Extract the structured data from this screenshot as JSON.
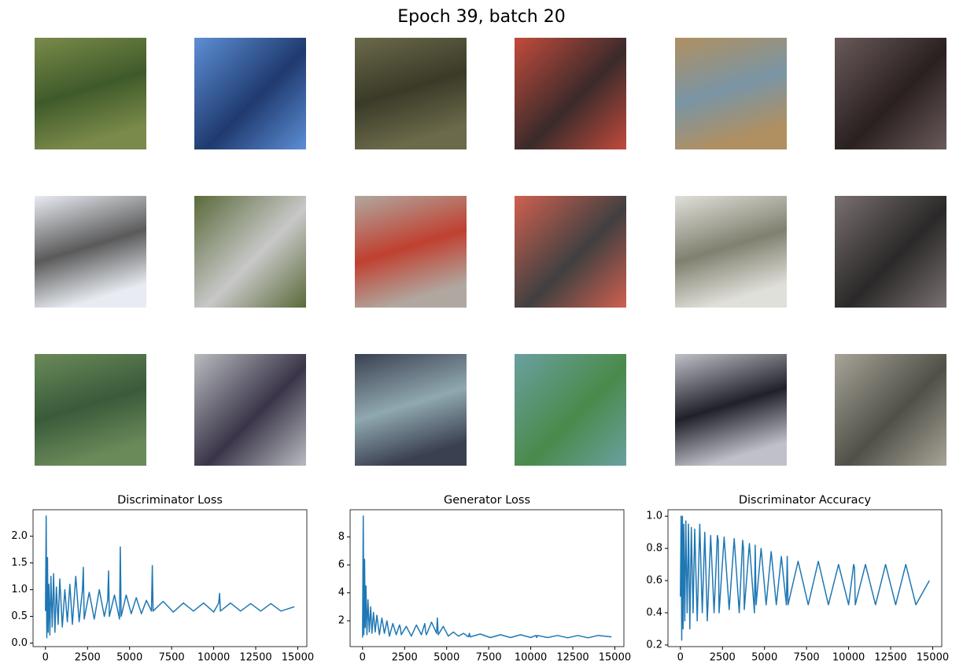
{
  "title": "Epoch 39, batch 20",
  "chart_data": [
    {
      "type": "line",
      "title": "Discriminator Loss",
      "color": "#1f77b4",
      "xlim": [
        -740,
        15540
      ],
      "xticks": [
        0,
        2500,
        5000,
        7500,
        10000,
        12500,
        15000
      ],
      "ylim": [
        -0.066,
        2.496
      ],
      "yticks": [
        {
          "value": 0,
          "label": "0.0"
        },
        0.5,
        {
          "value": 1,
          "label": "1.0"
        },
        1.5,
        {
          "value": 2,
          "label": "2.0"
        }
      ],
      "x": [
        0,
        40,
        80,
        120,
        160,
        200,
        260,
        320,
        400,
        480,
        560,
        650,
        750,
        850,
        1000,
        1150,
        1300,
        1450,
        1600,
        1800,
        2000,
        2200,
        2250,
        2300,
        2600,
        2900,
        3200,
        3500,
        3700,
        3750,
        3800,
        4100,
        4400,
        4450,
        4500,
        4800,
        5100,
        5400,
        5700,
        6000,
        6300,
        6350,
        6400,
        7000,
        7600,
        8200,
        8800,
        9400,
        10000,
        10300,
        10350,
        10400,
        11000,
        11600,
        12200,
        12800,
        13400,
        14000,
        14800
      ],
      "values": [
        0.6,
        2.38,
        0.1,
        1.6,
        0.2,
        1.1,
        0.15,
        1.25,
        0.3,
        1.3,
        0.2,
        1.05,
        0.35,
        1.2,
        0.3,
        1.0,
        0.4,
        1.1,
        0.35,
        1.25,
        0.4,
        1.0,
        1.42,
        0.45,
        0.95,
        0.45,
        1.0,
        0.5,
        0.8,
        1.35,
        0.5,
        0.9,
        0.45,
        1.8,
        0.5,
        0.9,
        0.55,
        0.85,
        0.55,
        0.8,
        0.6,
        1.45,
        0.6,
        0.78,
        0.58,
        0.75,
        0.6,
        0.75,
        0.58,
        0.75,
        0.93,
        0.6,
        0.75,
        0.6,
        0.74,
        0.6,
        0.74,
        0.6,
        0.68
      ]
    },
    {
      "type": "line",
      "title": "Generator Loss",
      "color": "#1f77b4",
      "xlim": [
        -740,
        15540
      ],
      "xticks": [
        0,
        2500,
        5000,
        7500,
        10000,
        12500,
        15000
      ],
      "ylim": [
        0.15,
        9.95
      ],
      "yticks": [
        2,
        4,
        6,
        8
      ],
      "x": [
        0,
        40,
        80,
        120,
        160,
        200,
        260,
        320,
        400,
        480,
        560,
        650,
        750,
        850,
        1000,
        1150,
        1300,
        1450,
        1600,
        1800,
        2000,
        2200,
        2250,
        2300,
        2600,
        2900,
        3200,
        3500,
        3700,
        3750,
        3800,
        4100,
        4400,
        4450,
        4500,
        4800,
        5100,
        5400,
        5700,
        6000,
        6300,
        6350,
        6400,
        7000,
        7600,
        8200,
        8800,
        9400,
        10000,
        10300,
        10350,
        10400,
        11000,
        11600,
        12200,
        12800,
        13400,
        14000,
        14800
      ],
      "values": [
        0.8,
        9.5,
        1.0,
        6.4,
        1.5,
        4.5,
        1.0,
        3.5,
        1.2,
        3.0,
        1.1,
        2.6,
        1.2,
        2.4,
        1.0,
        2.2,
        1.1,
        2.0,
        0.9,
        1.8,
        1.0,
        1.7,
        1.5,
        1.0,
        1.6,
        0.9,
        1.7,
        1.0,
        1.8,
        1.2,
        1.0,
        1.9,
        1.1,
        2.2,
        1.0,
        1.6,
        0.9,
        1.2,
        0.9,
        1.1,
        0.85,
        1.1,
        0.85,
        1.05,
        0.8,
        1.0,
        0.8,
        1.0,
        0.8,
        0.95,
        0.8,
        0.95,
        0.8,
        0.95,
        0.78,
        0.95,
        0.78,
        0.95,
        0.85
      ]
    },
    {
      "type": "line",
      "title": "Discriminator Accuracy",
      "color": "#1f77b4",
      "xlim": [
        -740,
        15540
      ],
      "xticks": [
        0,
        2500,
        5000,
        7500,
        10000,
        12500,
        15000
      ],
      "ylim": [
        0.19,
        1.04
      ],
      "yticks": [
        0.2,
        0.4,
        0.6,
        0.8,
        {
          "value": 1,
          "label": "1.0"
        }
      ],
      "x": [
        0,
        40,
        80,
        120,
        160,
        200,
        260,
        320,
        400,
        480,
        560,
        650,
        750,
        850,
        1000,
        1150,
        1300,
        1450,
        1600,
        1800,
        2000,
        2200,
        2250,
        2300,
        2600,
        2900,
        3200,
        3500,
        3700,
        3750,
        3800,
        4100,
        4400,
        4450,
        4500,
        4800,
        5100,
        5400,
        5700,
        6000,
        6300,
        6350,
        6400,
        7000,
        7600,
        8200,
        8800,
        9400,
        10000,
        10300,
        10350,
        10400,
        11000,
        11600,
        12200,
        12800,
        13400,
        14000,
        14800
      ],
      "values": [
        0.5,
        1.0,
        0.23,
        1.0,
        0.3,
        0.95,
        0.35,
        0.97,
        0.4,
        0.95,
        0.3,
        0.93,
        0.4,
        0.92,
        0.35,
        0.95,
        0.4,
        0.9,
        0.35,
        0.88,
        0.4,
        0.88,
        0.85,
        0.4,
        0.87,
        0.42,
        0.86,
        0.4,
        0.85,
        0.8,
        0.42,
        0.83,
        0.4,
        0.82,
        0.45,
        0.8,
        0.45,
        0.78,
        0.45,
        0.75,
        0.45,
        0.75,
        0.45,
        0.72,
        0.45,
        0.72,
        0.45,
        0.7,
        0.45,
        0.7,
        0.68,
        0.45,
        0.7,
        0.45,
        0.7,
        0.45,
        0.7,
        0.45,
        0.6
      ]
    }
  ]
}
